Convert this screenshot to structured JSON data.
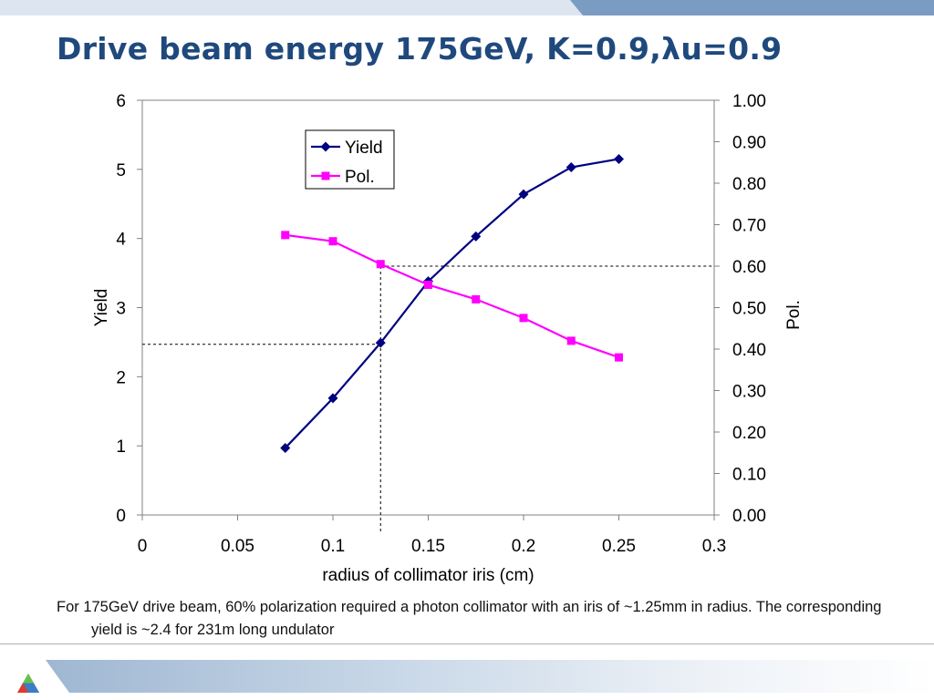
{
  "slide": {
    "title": "Drive beam energy 175GeV, K=0.9,λu=0.9",
    "caption": "For 175GeV drive beam, 60% polarization required a photon collimator with an iris of ~1.25mm in radius.  The corresponding yield is ~2.4 for 231m long undulator"
  },
  "colors": {
    "yield": "#000080",
    "pol": "#ff00ff",
    "title": "#1f497d"
  },
  "chart_data": {
    "type": "line",
    "xlabel": "radius of collimator iris (cm)",
    "ylabel": "Yield",
    "y2label": "Pol.",
    "xlim": [
      0,
      0.3
    ],
    "ylim": [
      0,
      6
    ],
    "y2lim": [
      0,
      1.0
    ],
    "x_ticks": [
      "0",
      "0.05",
      "0.1",
      "0.15",
      "0.2",
      "0.25",
      "0.3"
    ],
    "y_ticks": [
      "0",
      "1",
      "2",
      "3",
      "4",
      "5",
      "6"
    ],
    "y2_ticks": [
      "0.00",
      "0.10",
      "0.20",
      "0.30",
      "0.40",
      "0.50",
      "0.60",
      "0.70",
      "0.80",
      "0.90",
      "1.00"
    ],
    "legend_position": "top-left",
    "grid": false,
    "series": [
      {
        "name": "Yield",
        "axis": "left",
        "marker": "diamond",
        "x": [
          0.075,
          0.1,
          0.125,
          0.15,
          0.175,
          0.2,
          0.225,
          0.25
        ],
        "values": [
          0.97,
          1.69,
          2.49,
          3.38,
          4.03,
          4.64,
          5.03,
          5.15
        ]
      },
      {
        "name": "Pol.",
        "axis": "right",
        "marker": "square",
        "x": [
          0.075,
          0.1,
          0.125,
          0.15,
          0.175,
          0.2,
          0.225,
          0.25
        ],
        "values": [
          0.675,
          0.66,
          0.605,
          0.555,
          0.52,
          0.475,
          0.42,
          0.38
        ]
      }
    ],
    "reference_lines": [
      {
        "orientation": "vertical",
        "axis": "x",
        "value": 0.125
      },
      {
        "orientation": "horizontal",
        "axis": "left",
        "value": 2.47
      },
      {
        "orientation": "horizontal",
        "axis": "right",
        "value": 0.6
      }
    ]
  }
}
